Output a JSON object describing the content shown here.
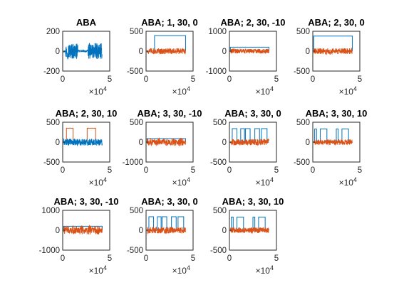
{
  "figure": {
    "background": "#ffffff",
    "colors": {
      "series_1": "#0072BD",
      "series_2": "#D95319",
      "axis": "#262626"
    }
  },
  "chart_data": [
    {
      "type": "line",
      "title": "ABA",
      "xlim": [
        0,
        50000
      ],
      "ylim": [
        -200,
        200
      ],
      "xticks": [
        "0",
        "5"
      ],
      "yticks": [
        "200",
        "0",
        "-200"
      ],
      "x_exponent": "×10^4",
      "series": [
        {
          "color": "#0072BD",
          "pattern": "noise",
          "center": 0,
          "amplitude": 80,
          "bursts": [
            [
              3000,
              16000
            ],
            [
              27000,
              42000
            ]
          ]
        }
      ]
    },
    {
      "type": "line",
      "title": "ABA; 1, 30, 0",
      "xlim": [
        0,
        50000
      ],
      "ylim": [
        -500,
        500
      ],
      "xticks": [
        "0",
        "5"
      ],
      "yticks": [
        "500",
        "0",
        "-500"
      ],
      "x_exponent": "×10^4",
      "series": [
        {
          "color": "#0072BD",
          "pattern": "step",
          "base": 0,
          "level": 390,
          "high_ranges": [
            [
              9000,
              42000
            ]
          ]
        },
        {
          "color": "#D95319",
          "pattern": "noise",
          "center": 0,
          "amplitude": 75
        }
      ]
    },
    {
      "type": "line",
      "title": "ABA; 2, 30, -10",
      "xlim": [
        0,
        50000
      ],
      "ylim": [
        -1000,
        1000
      ],
      "xticks": [
        "0",
        "5"
      ],
      "yticks": [
        "1000",
        "0",
        "-1000"
      ],
      "x_exponent": "×10^4",
      "series": [
        {
          "color": "#0072BD",
          "pattern": "step",
          "base": 0,
          "level": 200,
          "high_ranges": [
            [
              1000,
              42000
            ]
          ]
        },
        {
          "color": "#D95319",
          "pattern": "noise",
          "center": 0,
          "amplitude": 120
        }
      ]
    },
    {
      "type": "line",
      "title": "ABA; 2, 30, 0",
      "xlim": [
        0,
        50000
      ],
      "ylim": [
        -500,
        500
      ],
      "xticks": [
        "0",
        "5"
      ],
      "yticks": [
        "500",
        "0",
        "-500"
      ],
      "x_exponent": "×10^4",
      "series": [
        {
          "color": "#0072BD",
          "pattern": "step",
          "base": 0,
          "level": 380,
          "high_ranges": [
            [
              1000,
              42000
            ]
          ]
        },
        {
          "color": "#D95319",
          "pattern": "noise",
          "center": 0,
          "amplitude": 75
        }
      ]
    },
    {
      "type": "line",
      "title": "ABA; 2, 30, 10",
      "xlim": [
        0,
        50000
      ],
      "ylim": [
        -500,
        500
      ],
      "xticks": [
        "0",
        "5"
      ],
      "yticks": [
        "500",
        "0",
        "-500"
      ],
      "x_exponent": "×10^4",
      "series": [
        {
          "color": "#D95319",
          "pattern": "step",
          "base": 0,
          "level": 350,
          "high_ranges": [
            [
              4000,
              11000
            ],
            [
              26000,
              35000
            ]
          ]
        },
        {
          "color": "#0072BD",
          "pattern": "noise",
          "center": 0,
          "amplitude": 85
        }
      ]
    },
    {
      "type": "line",
      "title": "ABA; 3, 30, -10",
      "xlim": [
        0,
        50000
      ],
      "ylim": [
        -1000,
        1000
      ],
      "xticks": [
        "0",
        "5"
      ],
      "yticks": [
        "500",
        "0",
        "-1000"
      ],
      "x_exponent": "×10^4",
      "series": [
        {
          "color": "#0072BD",
          "pattern": "step",
          "base": 0,
          "level": 180,
          "high_ranges": [
            [
              1000,
              42000
            ]
          ]
        },
        {
          "color": "#D95319",
          "pattern": "noise",
          "center": 0,
          "amplitude": 220,
          "envelope": true
        }
      ]
    },
    {
      "type": "line",
      "title": "ABA; 3, 30, 0",
      "xlim": [
        0,
        50000
      ],
      "ylim": [
        -500,
        500
      ],
      "xticks": [
        "0",
        "5"
      ],
      "yticks": [
        "500",
        "0",
        "-500"
      ],
      "x_exponent": "×10^4",
      "series": [
        {
          "color": "#0072BD",
          "pattern": "step",
          "base": 0,
          "level": 340,
          "high_ranges": [
            [
              3000,
              8000
            ],
            [
              12000,
              16000
            ],
            [
              17000,
              22000
            ],
            [
              27000,
              32000
            ],
            [
              34000,
              40000
            ]
          ]
        },
        {
          "color": "#D95319",
          "pattern": "noise",
          "center": 0,
          "amplitude": 80
        }
      ]
    },
    {
      "type": "line",
      "title": "ABA; 3, 30, 10",
      "xlim": [
        0,
        50000
      ],
      "ylim": [
        -500,
        500
      ],
      "xticks": [
        "0",
        "5"
      ],
      "yticks": [
        "500",
        "0",
        "-500"
      ],
      "x_exponent": "×10^4",
      "series": [
        {
          "color": "#0072BD",
          "pattern": "step",
          "base": 0,
          "level": 330,
          "high_ranges": [
            [
              2000,
              4000
            ],
            [
              8000,
              15000
            ],
            [
              25000,
              27000
            ],
            [
              31000,
              38000
            ]
          ]
        },
        {
          "color": "#D95319",
          "pattern": "noise",
          "center": 0,
          "amplitude": 70
        }
      ]
    },
    {
      "type": "line",
      "title": "ABA; 3, 30, -10",
      "xlim": [
        0,
        50000
      ],
      "ylim": [
        -1000,
        1000
      ],
      "xticks": [
        "0",
        "5"
      ],
      "yticks": [
        "1000",
        "0",
        "-1000"
      ],
      "x_exponent": "×10^4",
      "series": [
        {
          "color": "#0072BD",
          "pattern": "step",
          "base": 0,
          "level": 200,
          "high_ranges": [
            [
              1000,
              42000
            ]
          ]
        },
        {
          "color": "#D95319",
          "pattern": "noise",
          "center": 0,
          "amplitude": 250,
          "envelope": true
        }
      ]
    },
    {
      "type": "line",
      "title": "ABA; 3, 30, 0",
      "xlim": [
        0,
        50000
      ],
      "ylim": [
        -500,
        500
      ],
      "xticks": [
        "0",
        "5"
      ],
      "yticks": [
        "500",
        "0",
        "-500"
      ],
      "x_exponent": "×10^4",
      "series": [
        {
          "color": "#0072BD",
          "pattern": "step",
          "base": 0,
          "level": 340,
          "high_ranges": [
            [
              3000,
              8000
            ],
            [
              12000,
              16000
            ],
            [
              17000,
              22000
            ],
            [
              27000,
              32000
            ],
            [
              34000,
              40000
            ]
          ]
        },
        {
          "color": "#D95319",
          "pattern": "noise",
          "center": 0,
          "amplitude": 80
        }
      ]
    },
    {
      "type": "line",
      "title": "ABA; 3, 30, 10",
      "xlim": [
        0,
        50000
      ],
      "ylim": [
        -500,
        500
      ],
      "xticks": [
        "0",
        "5"
      ],
      "yticks": [
        "500",
        "0",
        "-500"
      ],
      "x_exponent": "×10^4",
      "series": [
        {
          "color": "#0072BD",
          "pattern": "step",
          "base": 0,
          "level": 330,
          "high_ranges": [
            [
              2000,
              4000
            ],
            [
              8000,
              15000
            ],
            [
              25000,
              27000
            ],
            [
              31000,
              38000
            ]
          ]
        },
        {
          "color": "#D95319",
          "pattern": "noise",
          "center": 0,
          "amplitude": 70
        }
      ]
    }
  ]
}
